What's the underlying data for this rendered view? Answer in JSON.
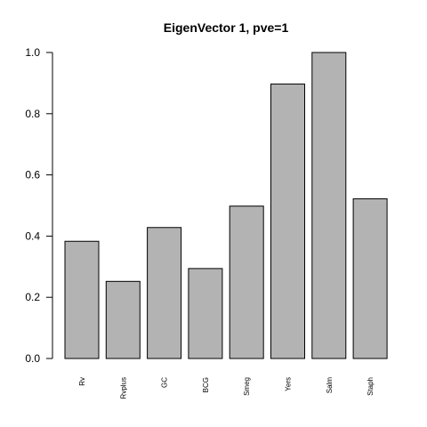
{
  "chart_data": {
    "type": "bar",
    "title": "EigenVector 1, pve=1",
    "xlabel": "",
    "ylabel": "",
    "categories": [
      "Rv",
      "Rvplus",
      "GC",
      "BCG",
      "Smeg",
      "Yers",
      "Salm",
      "Staph"
    ],
    "values": [
      0.383,
      0.252,
      0.428,
      0.294,
      0.498,
      0.897,
      1.0,
      0.522
    ],
    "ylim": [
      0,
      1.0
    ],
    "yticks": [
      "0.0",
      "0.2",
      "0.4",
      "0.6",
      "0.8",
      "1.0"
    ],
    "grid": false,
    "bar_color": "#b3b3b3",
    "bar_stroke": "#000000"
  }
}
